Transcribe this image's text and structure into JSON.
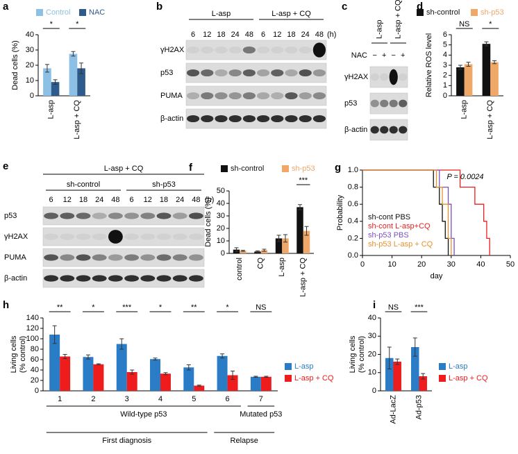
{
  "chart_data": [
    {
      "panel": "a",
      "type": "bar",
      "ylabel": "Dead cells (%)",
      "categories": [
        "L-asp",
        "L-asp + CQ"
      ],
      "series": [
        {
          "name": "Control",
          "color": "#8cc0e4",
          "values": [
            18,
            27.5
          ],
          "errors": [
            2.5,
            1.5
          ]
        },
        {
          "name": "NAC",
          "color": "#2e5a8c",
          "values": [
            9,
            18
          ],
          "errors": [
            1.5,
            3.5
          ]
        }
      ],
      "significance": [
        "*",
        "*"
      ],
      "ylim": [
        0,
        40
      ],
      "yticks": [
        0,
        10,
        20,
        30,
        40
      ],
      "legend": "top"
    },
    {
      "panel": "d",
      "type": "bar",
      "ylabel": "Relative ROS level",
      "categories": [
        "L-asp",
        "L-asp + CQ"
      ],
      "series": [
        {
          "name": "sh-control",
          "color": "#111111",
          "values": [
            2.8,
            5.1
          ],
          "errors": [
            0.2,
            0.2
          ]
        },
        {
          "name": "sh-p53",
          "color": "#f0a868",
          "values": [
            3.1,
            3.3
          ],
          "errors": [
            0.2,
            0.15
          ]
        }
      ],
      "significance": [
        "NS",
        "*"
      ],
      "ylim": [
        0,
        6
      ],
      "yticks": [
        0,
        1,
        2,
        3,
        4,
        5,
        6
      ],
      "legend": "top"
    },
    {
      "panel": "f",
      "type": "bar",
      "ylabel": "Dead cells (%)",
      "categories": [
        "control",
        "CQ",
        "L-asp",
        "L-asp + CQ"
      ],
      "series": [
        {
          "name": "sh-control",
          "color": "#111111",
          "values": [
            3,
            1.5,
            12,
            37
          ],
          "errors": [
            1.5,
            0.5,
            2.5,
            2
          ]
        },
        {
          "name": "sh-p53",
          "color": "#f0a868",
          "values": [
            2,
            2.5,
            12,
            18
          ],
          "errors": [
            0.5,
            0.8,
            3,
            3.5
          ]
        }
      ],
      "significance": [
        null,
        null,
        null,
        "***"
      ],
      "ylim": [
        0,
        50
      ],
      "yticks": [
        0,
        10,
        20,
        30,
        40,
        50
      ],
      "legend": "top"
    },
    {
      "panel": "g",
      "type": "line",
      "xlabel": "day",
      "ylabel": "Probability",
      "annotation": "P = 0.0024",
      "series": [
        {
          "name": "sh-cont PBS",
          "color": "#111111",
          "x": [
            0,
            24,
            24,
            26,
            26,
            27,
            27,
            28,
            28,
            29,
            29
          ],
          "values": [
            1,
            1,
            0.8,
            0.8,
            0.6,
            0.6,
            0.4,
            0.4,
            0.2,
            0.2,
            0
          ]
        },
        {
          "name": "sh-cont L-asp+CQ",
          "color": "#ee1c1c",
          "x": [
            0,
            33,
            33,
            38,
            38,
            41,
            41,
            42,
            42,
            43,
            43
          ],
          "values": [
            1,
            1,
            0.8,
            0.8,
            0.6,
            0.6,
            0.4,
            0.4,
            0.2,
            0.2,
            0
          ]
        },
        {
          "name": "sh-p53 PBS",
          "color": "#7a4fc0",
          "x": [
            0,
            26,
            26,
            29,
            29,
            30,
            30,
            31,
            31
          ],
          "values": [
            1,
            1,
            0.8,
            0.8,
            0.6,
            0.6,
            0.2,
            0.2,
            0
          ]
        },
        {
          "name": "sh-p53 L-asp + CQ",
          "color": "#e8902a",
          "x": [
            0,
            25,
            25,
            27,
            27,
            29,
            29,
            30,
            30
          ],
          "values": [
            1,
            1,
            0.8,
            0.8,
            0.6,
            0.6,
            0.2,
            0.2,
            0
          ]
        }
      ],
      "xlim": [
        0,
        50
      ],
      "xticks": [
        0,
        10,
        20,
        30,
        40,
        50
      ],
      "ylim": [
        0,
        1
      ],
      "yticks": [
        {
          "value": 0,
          "label": "0.0"
        },
        0.2,
        0.4,
        0.6,
        0.8,
        {
          "value": 1,
          "label": "1.0"
        }
      ],
      "legend": "inside"
    },
    {
      "panel": "h",
      "type": "bar",
      "ylabel": [
        "Living cells",
        "(% control)"
      ],
      "categories": [
        "1",
        "2",
        "3",
        "4",
        "5",
        "6",
        "7"
      ],
      "series": [
        {
          "name": "L-asp",
          "color": "#2a7cc7",
          "values": [
            108,
            65,
            90,
            61,
            45,
            67,
            27
          ],
          "errors": [
            17,
            4,
            10,
            2,
            5,
            4,
            1
          ]
        },
        {
          "name": "L-asp + CQ",
          "color": "#ee1c1c",
          "values": [
            66,
            51,
            36,
            33,
            10,
            30,
            27
          ],
          "errors": [
            4,
            1,
            4,
            2,
            1,
            8,
            1
          ]
        }
      ],
      "significance": [
        "**",
        "*",
        "***",
        "*",
        "**",
        "*",
        "NS"
      ],
      "ylim": [
        0,
        140
      ],
      "yticks": [
        0,
        20,
        40,
        60,
        80,
        100,
        120,
        140
      ],
      "legend": "right",
      "group_labels": [
        "Wild-type p53",
        "Mutated p53"
      ],
      "super_group_labels": [
        "First diagnosis",
        "Relapse"
      ]
    },
    {
      "panel": "i",
      "type": "bar",
      "ylabel": [
        "Living cells",
        "(% control)"
      ],
      "categories": [
        "Ad-LacZ",
        "Ad-p53"
      ],
      "series": [
        {
          "name": "L-asp",
          "color": "#2a7cc7",
          "values": [
            18,
            24
          ],
          "errors": [
            6,
            5
          ]
        },
        {
          "name": "L-asp + CQ",
          "color": "#ee1c1c",
          "values": [
            16,
            8
          ],
          "errors": [
            1.5,
            1.5
          ]
        }
      ],
      "significance": [
        "NS",
        "***"
      ],
      "ylim": [
        0,
        40
      ],
      "yticks": [
        0,
        10,
        20,
        30,
        40
      ],
      "legend": "right"
    }
  ],
  "blots": [
    {
      "panel": "b",
      "groups": [
        "L-asp",
        "L-asp + CQ"
      ],
      "lanes": [
        "6",
        "12",
        "18",
        "24",
        "48",
        "6",
        "12",
        "18",
        "24",
        "48"
      ],
      "unit": "(h)",
      "rows": [
        "γH2AX",
        "p53",
        "PUMA",
        "β-actin"
      ]
    },
    {
      "panel": "c",
      "groups": [
        "L-asp",
        "L-asp + CQ"
      ],
      "treatment": "NAC",
      "lanes": [
        "−",
        "+",
        "−",
        "+"
      ],
      "rows": [
        "γH2AX",
        "p53",
        "β-actin"
      ]
    },
    {
      "panel": "e",
      "title": "L-asp + CQ",
      "groups": [
        "sh-control",
        "sh-p53"
      ],
      "lanes": [
        "6",
        "12",
        "18",
        "24",
        "48",
        "6",
        "12",
        "18",
        "24",
        "48"
      ],
      "unit": "(h)",
      "rows": [
        "p53",
        "γH2AX",
        "PUMA",
        "β-actin"
      ]
    }
  ]
}
